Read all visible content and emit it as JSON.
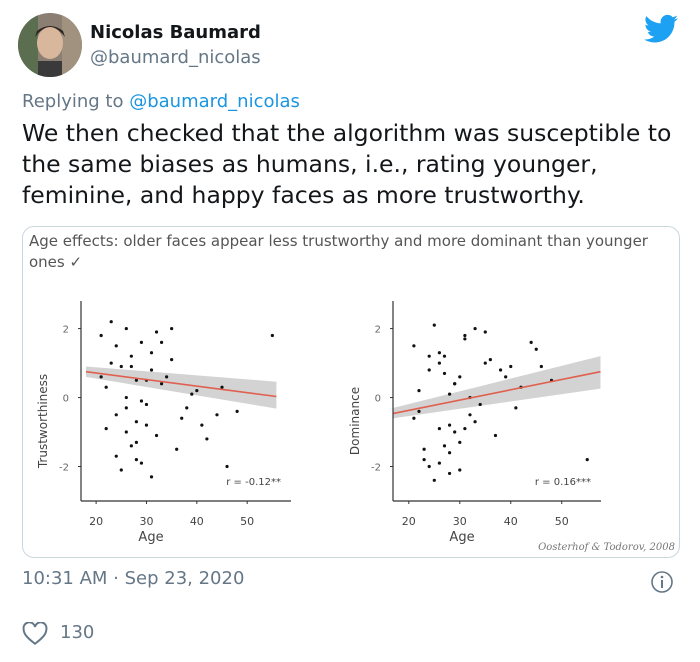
{
  "tweet": {
    "author": {
      "name": "Nicolas Baumard",
      "handle": "@baumard_nicolas"
    },
    "replying_label": "Replying to",
    "replying_to": "@baumard_nicolas",
    "text": "We then checked that the algorithm was susceptible to the same biases as humans, i.e., rating younger, feminine, and happy faces as more trustworthy.",
    "image": {
      "caption": "Age effects: older faces appear less trustworthy and more dominant than younger ones ✓",
      "credit": "Oosterhof & Todorov, 2008",
      "charts": [
        {
          "type": "scatter",
          "xlabel": "Age",
          "ylabel": "Trustworthiness",
          "annotation": "r = -0.12**",
          "xlim": [
            17,
            58.7
          ],
          "ylim": [
            -3,
            2.8
          ],
          "xticks": [
            20,
            30,
            40,
            50
          ],
          "yticks": [
            -2,
            0,
            2
          ],
          "color": "#111111",
          "trend_color": "#e06050",
          "band_color": "#c8c8c8",
          "x": [
            21,
            23,
            24,
            25,
            26,
            27,
            28,
            29,
            30,
            31,
            32,
            22,
            24,
            26,
            28,
            30,
            33,
            35,
            37,
            40,
            42,
            45,
            48,
            22,
            25,
            27,
            29,
            31,
            34,
            36,
            23,
            26,
            28,
            30,
            32,
            38,
            41,
            44,
            55,
            21,
            24,
            27,
            29,
            33,
            26,
            28,
            31,
            35,
            39,
            46
          ],
          "values": [
            1.8,
            2.2,
            1.5,
            0.9,
            2.0,
            1.2,
            0.5,
            1.6,
            -0.2,
            0.8,
            1.9,
            0.3,
            -0.5,
            -1.0,
            -1.8,
            -0.8,
            0.4,
            1.1,
            -0.6,
            0.2,
            -1.2,
            0.3,
            -0.4,
            -0.9,
            -2.1,
            -1.4,
            -0.1,
            -2.3,
            0.6,
            -1.5,
            1.0,
            0.0,
            -0.7,
            0.5,
            -1.1,
            -0.3,
            -0.8,
            -0.5,
            1.8,
            0.6,
            -1.7,
            0.9,
            -1.9,
            1.6,
            -0.3,
            -1.3,
            1.3,
            2.0,
            0.1,
            -2.0
          ],
          "trend": {
            "x": [
              18,
              55.8
            ],
            "values": [
              0.75,
              0.03
            ]
          },
          "band": {
            "x": [
              18,
              55.8
            ],
            "lower": [
              0.6,
              -0.32
            ],
            "upper": [
              0.9,
              0.46
            ]
          }
        },
        {
          "type": "scatter",
          "xlabel": "Age",
          "ylabel": "Dominance",
          "annotation": "r = 0.16***",
          "xlim": [
            16.9,
            57.7
          ],
          "ylim": [
            -3,
            2.8
          ],
          "xticks": [
            20,
            30,
            40,
            50
          ],
          "yticks": [
            -2,
            0,
            2
          ],
          "color": "#111111",
          "trend_color": "#e06050",
          "band_color": "#c8c8c8",
          "x": [
            21,
            23,
            24,
            25,
            26,
            27,
            28,
            29,
            30,
            31,
            32,
            22,
            24,
            26,
            28,
            30,
            33,
            35,
            37,
            40,
            42,
            45,
            48,
            22,
            25,
            27,
            29,
            31,
            34,
            36,
            23,
            26,
            28,
            30,
            32,
            38,
            41,
            44,
            55,
            21,
            24,
            27,
            29,
            33,
            26,
            28,
            31,
            35,
            39,
            46
          ],
          "values": [
            1.5,
            -1.8,
            0.8,
            2.1,
            -0.9,
            1.2,
            -2.2,
            0.4,
            -1.3,
            1.7,
            -0.5,
            0.2,
            -2.0,
            1.0,
            -1.6,
            0.6,
            -0.7,
            1.9,
            -1.1,
            0.9,
            0.3,
            1.4,
            0.5,
            -0.4,
            -2.4,
            0.7,
            -1.0,
            1.8,
            -0.2,
            1.1,
            -1.5,
            1.3,
            -0.8,
            -2.1,
            0.0,
            0.8,
            -0.3,
            1.6,
            -1.8,
            -0.6,
            1.2,
            -1.4,
            0.4,
            2.0,
            -1.9,
            0.1,
            -0.9,
            1.0,
            0.6,
            0.9
          ],
          "trend": {
            "x": [
              17,
              57.6
            ],
            "values": [
              -0.46,
              0.75
            ]
          },
          "band": {
            "x": [
              17,
              57.6
            ],
            "lower": [
              -0.6,
              0.26
            ],
            "upper": [
              -0.3,
              1.2
            ]
          }
        }
      ]
    },
    "timestamp": "10:31 AM · Sep 23, 2020",
    "likes": 130
  }
}
